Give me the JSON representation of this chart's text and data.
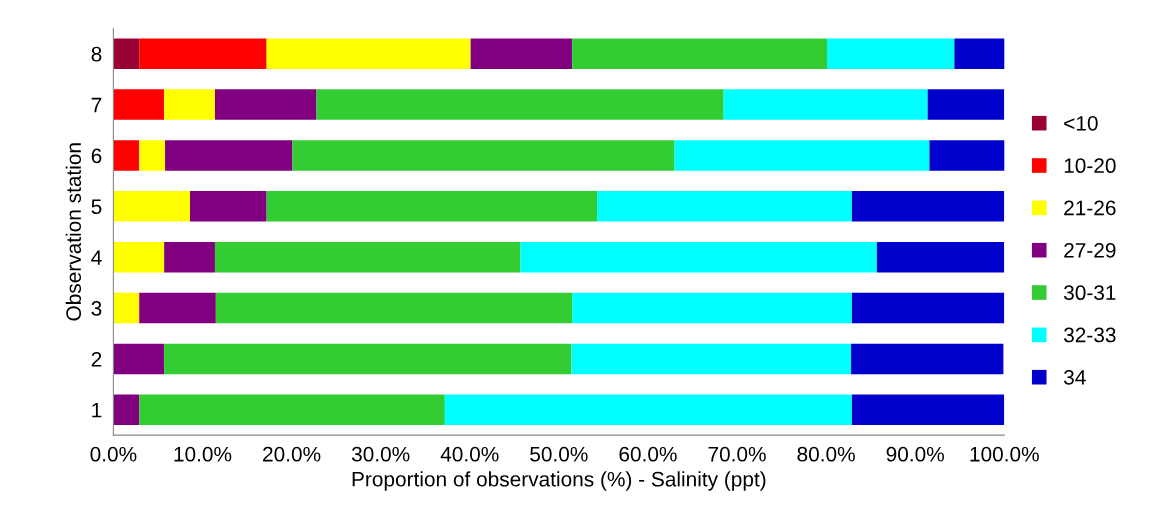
{
  "chart_data": {
    "type": "bar",
    "orientation": "horizontal",
    "stacked": true,
    "xlabel": "Proportion of observations (%) - Salinity (ppt)",
    "ylabel": "Observation station",
    "categories": [
      "8",
      "7",
      "6",
      "5",
      "4",
      "3",
      "2",
      "1"
    ],
    "series": [
      {
        "name": "<10",
        "color": "#990033",
        "values": [
          2.9,
          0,
          0,
          0,
          0,
          0,
          0,
          0
        ]
      },
      {
        "name": "10-20",
        "color": "#ff0000",
        "values": [
          14.3,
          5.7,
          2.9,
          0,
          0,
          0,
          0,
          0
        ]
      },
      {
        "name": "21-26",
        "color": "#ffff00",
        "values": [
          22.9,
          5.7,
          2.9,
          8.6,
          5.7,
          2.9,
          0,
          0
        ]
      },
      {
        "name": "27-29",
        "color": "#800080",
        "values": [
          11.4,
          11.4,
          14.3,
          8.6,
          5.7,
          8.6,
          5.7,
          2.9
        ]
      },
      {
        "name": "30-31",
        "color": "#33cc33",
        "values": [
          28.6,
          45.7,
          42.9,
          37.1,
          34.3,
          40.0,
          45.7,
          34.3
        ]
      },
      {
        "name": "32-33",
        "color": "#00ffff",
        "values": [
          14.3,
          22.9,
          28.6,
          28.6,
          40.0,
          31.4,
          31.4,
          45.7
        ]
      },
      {
        "name": "34",
        "color": "#0000cc",
        "values": [
          5.7,
          8.6,
          8.6,
          17.1,
          14.3,
          17.1,
          17.1,
          17.1
        ]
      }
    ],
    "xlim": [
      0,
      100
    ],
    "xticks": [
      {
        "value": 0,
        "label": "0.0%"
      },
      {
        "value": 10,
        "label": "10.0%"
      },
      {
        "value": 20,
        "label": "20.0%"
      },
      {
        "value": 30,
        "label": "30.0%"
      },
      {
        "value": 40,
        "label": "40.0%"
      },
      {
        "value": 50,
        "label": "50.0%"
      },
      {
        "value": 60,
        "label": "60.0%"
      },
      {
        "value": 70,
        "label": "70.0%"
      },
      {
        "value": 80,
        "label": "80.0%"
      },
      {
        "value": 90,
        "label": "90.0%"
      },
      {
        "value": 100,
        "label": "100.0%"
      }
    ],
    "grid": false,
    "legend": "right"
  }
}
